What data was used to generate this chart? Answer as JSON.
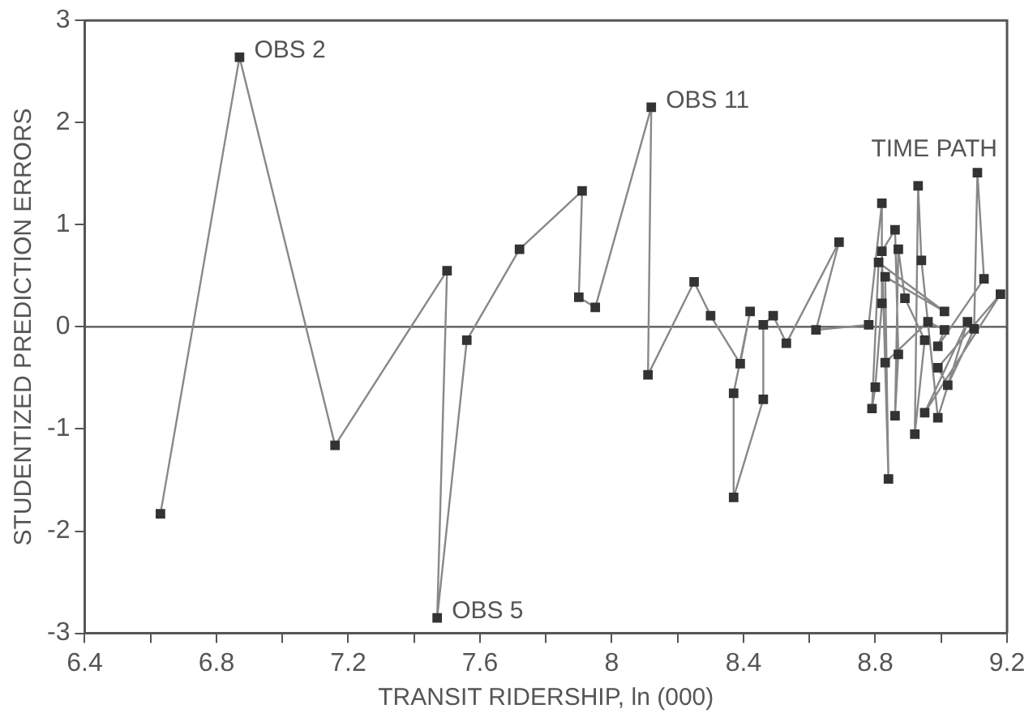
{
  "chart_data": {
    "type": "line",
    "xlabel": "TRANSIT RIDERSHIP, ln (000)",
    "ylabel": "STUDENTIZED PREDICTION ERRORS",
    "x": [
      6.63,
      6.87,
      7.16,
      7.5,
      7.47,
      7.56,
      7.72,
      7.91,
      7.9,
      7.95,
      8.12,
      8.11,
      8.25,
      8.3,
      8.39,
      8.42,
      8.37,
      8.37,
      8.46,
      8.46,
      8.49,
      8.53,
      8.69,
      8.62,
      8.78,
      8.82,
      8.82,
      8.8,
      8.79,
      8.81,
      9.01,
      8.83,
      8.84,
      8.82,
      8.86,
      8.87,
      8.86,
      8.87,
      8.89,
      8.95,
      8.92,
      8.93,
      8.94,
      8.99,
      9.08,
      8.95,
      9.18,
      8.99,
      9.02,
      9.1,
      9.11,
      9.13,
      8.99,
      9.01,
      8.96,
      8.83
    ],
    "series": [
      {
        "color": "#333333",
        "values": [
          -1.83,
          2.64,
          -1.16,
          0.55,
          -2.85,
          -0.13,
          0.76,
          1.33,
          0.29,
          0.19,
          2.15,
          -0.47,
          0.44,
          0.11,
          -0.36,
          0.15,
          -0.65,
          -1.67,
          -0.71,
          0.02,
          0.11,
          -0.16,
          0.83,
          -0.03,
          0.02,
          1.21,
          0.23,
          -0.59,
          -0.8,
          0.63,
          0.15,
          0.49,
          -1.49,
          0.74,
          0.95,
          -0.27,
          -0.87,
          0.76,
          0.28,
          -0.13,
          -1.05,
          1.38,
          0.65,
          -0.89,
          0.05,
          -0.84,
          0.32,
          -0.4,
          -0.57,
          -0.02,
          1.51,
          0.47,
          -0.19,
          -0.03,
          0.05,
          -0.35
        ]
      }
    ],
    "xlim": [
      6.4,
      9.2
    ],
    "xticks": [
      6.4,
      {
        "value": 6.6,
        "label": null
      },
      6.8,
      {
        "value": 7.0,
        "label": null
      },
      7.2,
      {
        "value": 7.4,
        "label": null
      },
      7.6,
      {
        "value": 7.8,
        "label": null
      },
      8,
      {
        "value": 8.2,
        "label": null
      },
      8.4,
      {
        "value": 8.6,
        "label": null
      },
      8.8,
      {
        "value": 9.0,
        "label": null
      },
      9.2
    ],
    "ylim": [
      -3,
      3
    ],
    "yticks": [
      -3,
      -2,
      -1,
      0,
      1,
      2,
      3
    ],
    "ref_lines": [
      {
        "axis": "y",
        "value": 0,
        "color": "#555555"
      }
    ],
    "annotations": [
      {
        "text": "OBS 2",
        "x": 6.87,
        "y": 2.64
      },
      {
        "text": "OBS 5",
        "x": 7.47,
        "y": -2.85
      },
      {
        "text": "OBS 11",
        "x": 8.12,
        "y": 2.15
      },
      "TIME PATH"
    ],
    "marker": "square",
    "line_style": "solid",
    "grid": false,
    "legend": false
  }
}
